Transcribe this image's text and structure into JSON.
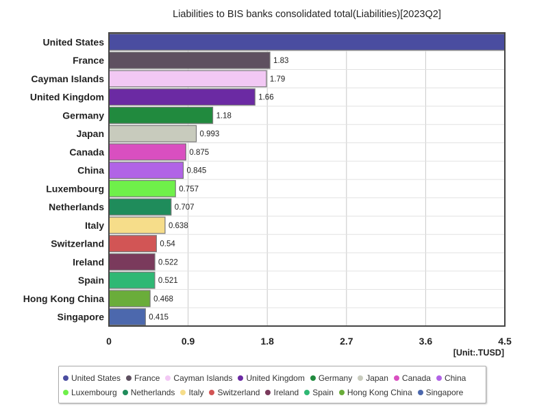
{
  "chart_data": {
    "type": "bar",
    "orientation": "horizontal",
    "title": "Liabilities to BIS banks consolidated total(Liabilities)[2023Q2]",
    "unit_label": "[Unit:.TUSD]",
    "categories": [
      "United States",
      "France",
      "Cayman Islands",
      "United Kingdom",
      "Germany",
      "Japan",
      "Canada",
      "China",
      "Luxembourg",
      "Netherlands",
      "Italy",
      "Switzerland",
      "Ireland",
      "Spain",
      "Hong Kong China",
      "Singapore"
    ],
    "values": [
      4.5,
      1.83,
      1.79,
      1.66,
      1.18,
      0.993,
      0.875,
      0.845,
      0.757,
      0.707,
      0.638,
      0.54,
      0.522,
      0.521,
      0.468,
      0.415
    ],
    "value_labels": [
      "",
      "1.83",
      "1.79",
      "1.66",
      "1.18",
      "0.993",
      "0.875",
      "0.845",
      "0.757",
      "0.707",
      "0.638",
      "0.54",
      "0.522",
      "0.521",
      "0.468",
      "0.415"
    ],
    "colors": [
      "#4a4da0",
      "#5e5060",
      "#f2c8f4",
      "#6b2aa3",
      "#218a3e",
      "#c8cbbd",
      "#d94fc0",
      "#b163e6",
      "#6ff04a",
      "#1f8c5b",
      "#f6dd8a",
      "#d25555",
      "#7a3a5c",
      "#2fb874",
      "#6aad3a",
      "#4c68ad"
    ],
    "xlim": [
      0,
      4.5
    ],
    "xticks": [
      "0",
      "0.9",
      "1.8",
      "2.7",
      "3.6",
      "4.5"
    ],
    "grid": true,
    "legend_position": "bottom"
  }
}
